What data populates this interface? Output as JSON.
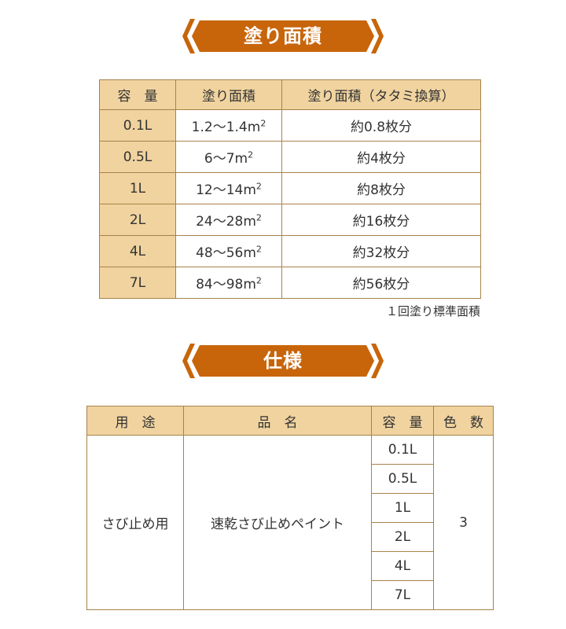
{
  "section1": {
    "title": "塗り面積",
    "headers": [
      "容　量",
      "塗り面積",
      "塗り面積（タタミ換算）"
    ],
    "rows": [
      {
        "cap": "0.1L",
        "area": "1.2〜1.4m",
        "tatami": "約0.8枚分"
      },
      {
        "cap": "0.5L",
        "area": "6〜7m",
        "tatami": "約4枚分"
      },
      {
        "cap": "1L",
        "area": "12〜14m",
        "tatami": "約8枚分"
      },
      {
        "cap": "2L",
        "area": "24〜28m",
        "tatami": "約16枚分"
      },
      {
        "cap": "4L",
        "area": "48〜56m",
        "tatami": "約32枚分"
      },
      {
        "cap": "7L",
        "area": "84〜98m",
        "tatami": "約56枚分"
      }
    ],
    "sup": "2",
    "note": "１回塗り標準面積"
  },
  "section2": {
    "title": "仕様",
    "headers": [
      "用　途",
      "品　名",
      "容　量",
      "色　数"
    ],
    "use": "さび止め用",
    "product": "速乾さび止めペイント",
    "capacities": [
      "0.1L",
      "0.5L",
      "1L",
      "2L",
      "4L",
      "7L"
    ],
    "colors": "3"
  },
  "colors": {
    "banner": "#c8650a",
    "header": "#f0d39f",
    "border": "#a8824a"
  }
}
